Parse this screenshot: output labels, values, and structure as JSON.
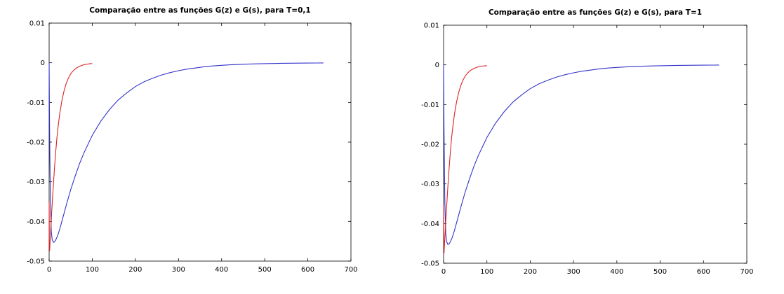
{
  "chart_data": [
    {
      "type": "line",
      "title": "Comparação entre as funções G(z) e G(s), para T=0,1",
      "xlabel": "",
      "ylabel": "",
      "xlim": [
        0,
        700
      ],
      "ylim": [
        -0.05,
        0.01
      ],
      "x_ticks": [
        0,
        100,
        200,
        300,
        400,
        500,
        600,
        700
      ],
      "x_tick_labels": [
        "0",
        "100",
        "200",
        "300",
        "400",
        "500",
        "600",
        "700"
      ],
      "y_ticks": [
        -0.05,
        -0.04,
        -0.03,
        -0.02,
        -0.01,
        0,
        0.01
      ],
      "y_tick_labels": [
        "-0.05",
        "-0.04",
        "-0.03",
        "-0.02",
        "-0.01",
        "0",
        "0.01"
      ],
      "grid": false,
      "series": [
        {
          "color": "#3333cc",
          "x": [
            0,
            1,
            2,
            3,
            5,
            7,
            10,
            13,
            16,
            20,
            25,
            30,
            40,
            50,
            60,
            70,
            80,
            100,
            120,
            140,
            160,
            180,
            200,
            220,
            240,
            260,
            280,
            300,
            320,
            340,
            360,
            380,
            400,
            420,
            440,
            460,
            480,
            500,
            520,
            540,
            560,
            580,
            600,
            620,
            636
          ],
          "y": [
            0,
            -0.016,
            -0.027,
            -0.035,
            -0.0425,
            -0.0445,
            -0.0453,
            -0.0451,
            -0.0445,
            -0.0435,
            -0.0418,
            -0.0398,
            -0.0358,
            -0.032,
            -0.0287,
            -0.0256,
            -0.0229,
            -0.0183,
            -0.0147,
            -0.0118,
            -0.0094,
            -0.0076,
            -0.006,
            -0.0048,
            -0.0039,
            -0.0031,
            -0.0025,
            -0.002,
            -0.0016,
            -0.0013,
            -0.001,
            -0.0008,
            -0.00065,
            -0.00052,
            -0.00042,
            -0.00034,
            -0.00027,
            -0.00022,
            -0.00018,
            -0.00014,
            -0.00011,
            -9e-05,
            -7e-05,
            -6e-05,
            -5e-05
          ]
        },
        {
          "color": "#dd2222",
          "x": [
            0,
            0.5,
            1,
            1.5,
            2,
            3,
            4,
            5,
            6,
            8,
            10,
            12,
            15,
            18,
            20,
            25,
            30,
            35,
            40,
            45,
            50,
            55,
            60,
            65,
            70,
            75,
            80,
            85,
            90,
            95,
            100
          ],
          "y": [
            -0.035,
            -0.045,
            -0.0475,
            -0.0468,
            -0.0455,
            -0.0435,
            -0.0415,
            -0.0395,
            -0.0375,
            -0.034,
            -0.0305,
            -0.0272,
            -0.0228,
            -0.019,
            -0.0168,
            -0.0125,
            -0.0093,
            -0.0069,
            -0.0051,
            -0.0038,
            -0.0028,
            -0.0021,
            -0.0016,
            -0.0012,
            -0.0009,
            -0.0007,
            -0.0005,
            -0.0004,
            -0.0003,
            -0.00025,
            -0.0002
          ]
        }
      ]
    },
    {
      "type": "line",
      "title": "Comparação entre as funções G(z) e G(s), para T=1",
      "xlabel": "",
      "ylabel": "",
      "xlim": [
        0,
        700
      ],
      "ylim": [
        -0.05,
        0.01
      ],
      "x_ticks": [
        0,
        100,
        200,
        300,
        400,
        500,
        600,
        700
      ],
      "x_tick_labels": [
        "0",
        "100",
        "200",
        "300",
        "400",
        "500",
        "600",
        "700"
      ],
      "y_ticks": [
        -0.05,
        -0.04,
        -0.03,
        -0.02,
        -0.01,
        0,
        0.01
      ],
      "y_tick_labels": [
        "-0.05",
        "-0.04",
        "-0.03",
        "-0.02",
        "-0.01",
        "0",
        "0.01"
      ],
      "grid": false,
      "series": [
        {
          "color": "#3333cc",
          "x": [
            0,
            1,
            2,
            3,
            5,
            7,
            10,
            13,
            16,
            20,
            25,
            30,
            40,
            50,
            60,
            70,
            80,
            100,
            120,
            140,
            160,
            180,
            200,
            220,
            240,
            260,
            280,
            300,
            320,
            340,
            360,
            380,
            400,
            420,
            440,
            460,
            480,
            500,
            520,
            540,
            560,
            580,
            600,
            620,
            636
          ],
          "y": [
            0,
            -0.016,
            -0.027,
            -0.035,
            -0.0425,
            -0.0445,
            -0.0453,
            -0.0451,
            -0.0445,
            -0.0435,
            -0.0418,
            -0.0398,
            -0.0358,
            -0.032,
            -0.0287,
            -0.0256,
            -0.0229,
            -0.0183,
            -0.0147,
            -0.0118,
            -0.0094,
            -0.0076,
            -0.006,
            -0.0048,
            -0.0039,
            -0.0031,
            -0.0025,
            -0.002,
            -0.0016,
            -0.0013,
            -0.001,
            -0.0008,
            -0.00065,
            -0.00052,
            -0.00042,
            -0.00034,
            -0.00027,
            -0.00022,
            -0.00018,
            -0.00014,
            -0.00011,
            -9e-05,
            -7e-05,
            -6e-05,
            -5e-05
          ]
        },
        {
          "color": "#dd2222",
          "x": [
            0,
            1,
            2,
            3,
            4,
            5,
            6,
            8,
            10,
            12,
            15,
            18,
            20,
            25,
            30,
            35,
            40,
            45,
            50,
            55,
            60,
            65,
            70,
            75,
            80,
            85,
            90,
            95,
            100
          ],
          "y": [
            -0.035,
            -0.0475,
            -0.0455,
            -0.0435,
            -0.0415,
            -0.0395,
            -0.0375,
            -0.034,
            -0.0305,
            -0.0272,
            -0.0228,
            -0.019,
            -0.0168,
            -0.0125,
            -0.0093,
            -0.0069,
            -0.0051,
            -0.0038,
            -0.0028,
            -0.0021,
            -0.0016,
            -0.0012,
            -0.0009,
            -0.0007,
            -0.0005,
            -0.0004,
            -0.0003,
            -0.00025,
            -0.0002
          ]
        }
      ]
    }
  ]
}
